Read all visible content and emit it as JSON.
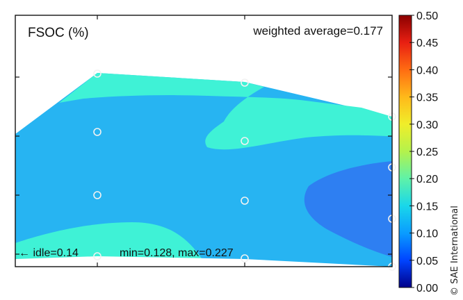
{
  "chart_data": {
    "type": "contour",
    "title": "FSOC (%)",
    "annotations": {
      "weighted_average": "weighted average=0.177",
      "idle": "← idle=0.14",
      "min_max": "min=0.128, max=0.227"
    },
    "colorbar": {
      "ticks": [
        "0.50",
        "0.45",
        "0.40",
        "0.35",
        "0.30",
        "0.25",
        "0.20",
        "0.15",
        "0.10",
        "0.05",
        "0.00"
      ],
      "range": [
        0.0,
        0.5
      ],
      "colors": [
        "#00008a",
        "#0044ff",
        "#0a9cff",
        "#19d7ea",
        "#5ff2a8",
        "#b4f24c",
        "#f0ee2a",
        "#ffb91a",
        "#ff6c12",
        "#e81f12",
        "#8b0000"
      ]
    },
    "levels": [
      {
        "range": [
          0.1,
          0.15
        ],
        "color": "#2e7ff2"
      },
      {
        "range": [
          0.15,
          0.2
        ],
        "color": "#27b4f2"
      },
      {
        "range": [
          0.2,
          0.25
        ],
        "color": "#3ff2d6"
      }
    ],
    "measurement_points": 12,
    "grid": false
  },
  "credit": "© SAE International"
}
